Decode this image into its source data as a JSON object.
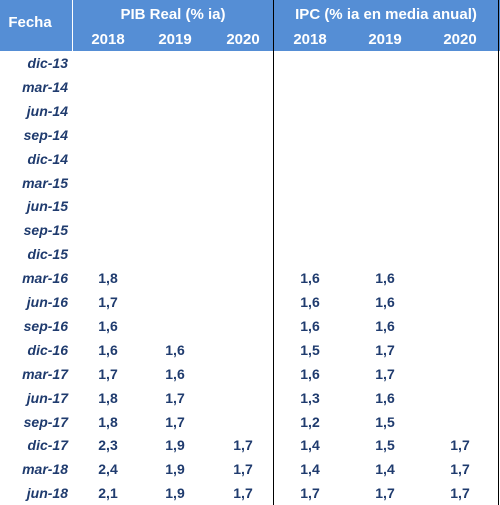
{
  "header": {
    "fecha": "Fecha",
    "groups": [
      {
        "title": "PIB Real  (% ia)",
        "years": [
          "2018",
          "2019",
          "2020"
        ]
      },
      {
        "title": "IPC (% ia en media anual)",
        "years": [
          "2018",
          "2019",
          "2020"
        ]
      }
    ]
  },
  "table": {
    "rows": [
      {
        "date": "dic-13",
        "values": [
          null,
          null,
          null,
          null,
          null,
          null
        ]
      },
      {
        "date": "mar-14",
        "values": [
          null,
          null,
          null,
          null,
          null,
          null
        ]
      },
      {
        "date": "jun-14",
        "values": [
          null,
          null,
          null,
          null,
          null,
          null
        ]
      },
      {
        "date": "sep-14",
        "values": [
          null,
          null,
          null,
          null,
          null,
          null
        ]
      },
      {
        "date": "dic-14",
        "values": [
          null,
          null,
          null,
          null,
          null,
          null
        ]
      },
      {
        "date": "mar-15",
        "values": [
          null,
          null,
          null,
          null,
          null,
          null
        ]
      },
      {
        "date": "jun-15",
        "values": [
          null,
          null,
          null,
          null,
          null,
          null
        ]
      },
      {
        "date": "sep-15",
        "values": [
          null,
          null,
          null,
          null,
          null,
          null
        ]
      },
      {
        "date": "dic-15",
        "values": [
          null,
          null,
          null,
          null,
          null,
          null
        ]
      },
      {
        "date": "mar-16",
        "values": [
          "1,8",
          null,
          null,
          "1,6",
          "1,6",
          null
        ]
      },
      {
        "date": "jun-16",
        "values": [
          "1,7",
          null,
          null,
          "1,6",
          "1,6",
          null
        ]
      },
      {
        "date": "sep-16",
        "values": [
          "1,6",
          null,
          null,
          "1,6",
          "1,6",
          null
        ]
      },
      {
        "date": "dic-16",
        "values": [
          "1,6",
          "1,6",
          null,
          "1,5",
          "1,7",
          null
        ]
      },
      {
        "date": "mar-17",
        "values": [
          "1,7",
          "1,6",
          null,
          "1,6",
          "1,7",
          null
        ]
      },
      {
        "date": "jun-17",
        "values": [
          "1,8",
          "1,7",
          null,
          "1,3",
          "1,6",
          null
        ]
      },
      {
        "date": "sep-17",
        "values": [
          "1,8",
          "1,7",
          null,
          "1,2",
          "1,5",
          null
        ]
      },
      {
        "date": "dic-17",
        "values": [
          "2,3",
          "1,9",
          "1,7",
          "1,4",
          "1,5",
          "1,7"
        ]
      },
      {
        "date": "mar-18",
        "values": [
          "2,4",
          "1,9",
          "1,7",
          "1,4",
          "1,4",
          "1,7"
        ]
      },
      {
        "date": "jun-18",
        "values": [
          "2,1",
          "1,9",
          "1,7",
          "1,7",
          "1,7",
          "1,7"
        ]
      }
    ]
  }
}
